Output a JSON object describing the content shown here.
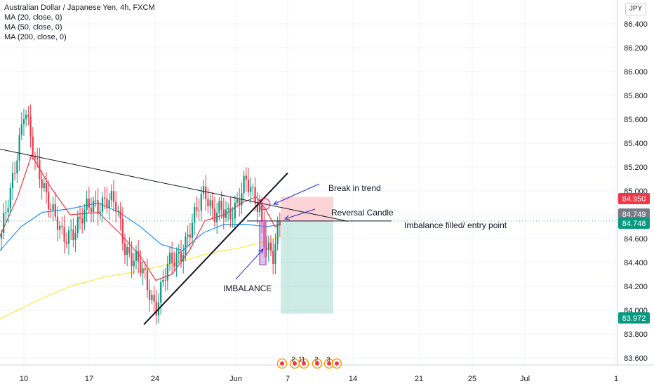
{
  "legend": {
    "title": "Australian Dollar / Japanese Yen, 4h, FXCM",
    "ma20": "MA (20, close, 0)",
    "ma50": "MA (50, close, 0)",
    "ma200": "MA (200, close, 0)"
  },
  "currency": "JPY",
  "chart_data": {
    "type": "candlestick",
    "title": "Australian Dollar / Japanese Yen, 4h, FXCM",
    "yticks": [
      "86.400",
      "86.200",
      "86.000",
      "85.800",
      "85.600",
      "85.400",
      "85.200",
      "85.000",
      "84.800",
      "84.600",
      "84.400",
      "84.200",
      "84.000",
      "83.800",
      "83.600"
    ],
    "xticks": [
      "10",
      "17",
      "24",
      "Jun",
      "7",
      "14",
      "21",
      "25",
      "Jul",
      "1"
    ],
    "price_labels": [
      {
        "text": "84.950",
        "value": 84.95,
        "color": "#f23645"
      },
      {
        "text": "84.749",
        "value": 84.749,
        "color": "#787b86"
      },
      {
        "text": "84.748",
        "value": 84.748,
        "color": "#089981"
      },
      {
        "text": "83.972",
        "value": 83.972,
        "color": "#089981"
      }
    ],
    "annotations": [
      "Break in trend",
      "Reversal Candle",
      "Imbalance filled/ entry point",
      "IMBALANCE"
    ],
    "event_labels": [
      "2",
      "11",
      "2",
      "3"
    ],
    "series": [
      {
        "name": "MA (20, close, 0)",
        "color": "#f23645"
      },
      {
        "name": "MA (50, close, 0)",
        "color": "#2196f3"
      },
      {
        "name": "MA (200, close, 0)",
        "color": "#ffeb3b"
      }
    ],
    "position": {
      "entry": 84.748,
      "stop": 84.95,
      "target": 83.972
    },
    "up_color": "#089981",
    "down_color": "#f23645"
  }
}
